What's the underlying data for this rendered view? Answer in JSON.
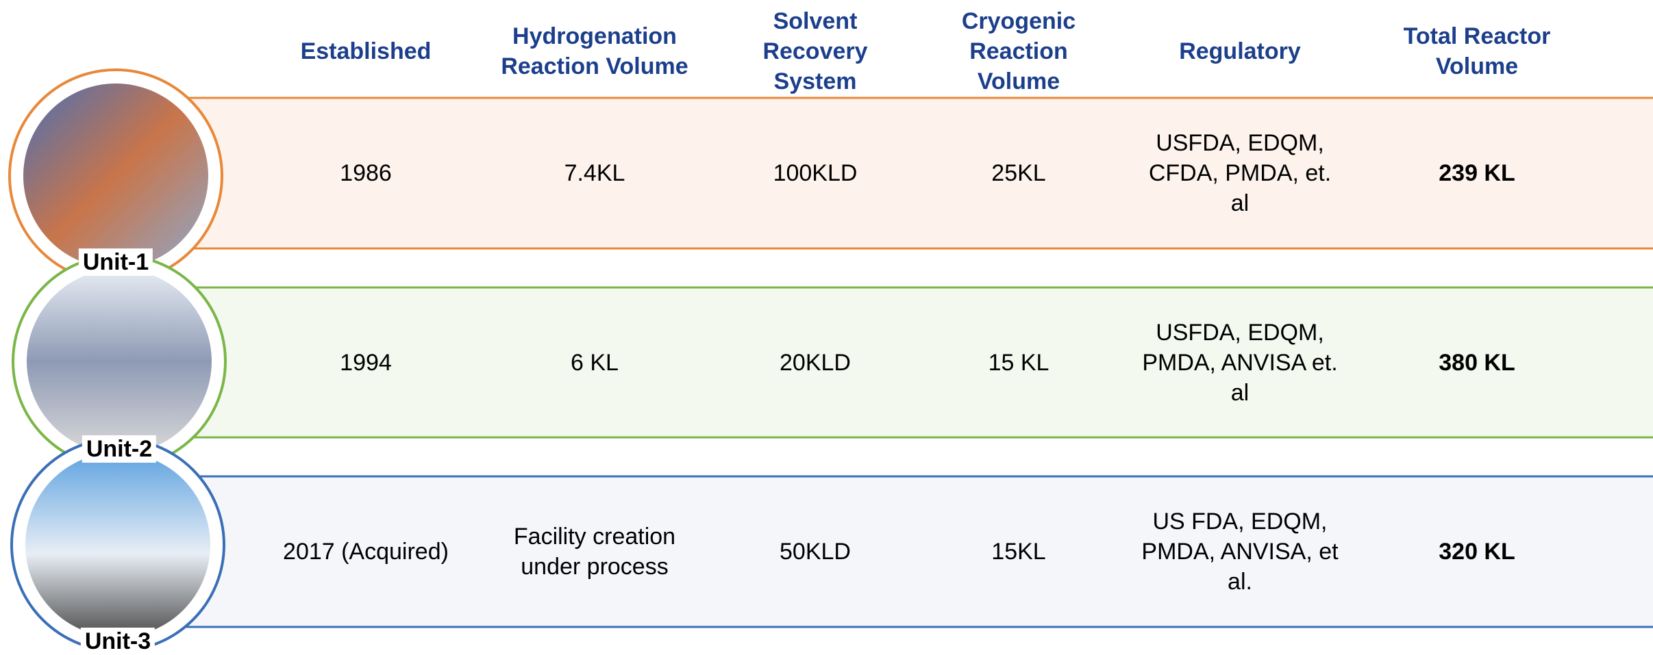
{
  "header": {
    "columns": [
      "Established",
      "Hydrogenation Reaction Volume",
      "Solvent Recovery System",
      "Cryogenic Reaction Volume",
      "Regulatory",
      "Total Reactor Volume"
    ]
  },
  "rows": [
    {
      "unit": "Unit-1",
      "cells": [
        "1986",
        "7.4KL",
        "100KLD",
        "25KL",
        "USFDA, EDQM, CFDA, PMDA, et. al",
        "239 KL"
      ]
    },
    {
      "unit": "Unit-2",
      "cells": [
        "1994",
        "6 KL",
        "20KLD",
        "15 KL",
        "USFDA, EDQM, PMDA, ANVISA et. al",
        "380 KL"
      ]
    },
    {
      "unit": "Unit-3",
      "cells": [
        "2017 (Acquired)",
        "Facility creation under process",
        "50KLD",
        "15KL",
        "US FDA, EDQM, PMDA, ANVISA, et al.",
        "320 KL"
      ]
    }
  ]
}
